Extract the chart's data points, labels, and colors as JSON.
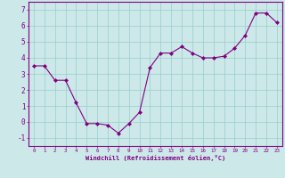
{
  "x": [
    0,
    1,
    2,
    3,
    4,
    5,
    6,
    7,
    8,
    9,
    10,
    11,
    12,
    13,
    14,
    15,
    16,
    17,
    18,
    19,
    20,
    21,
    22,
    23
  ],
  "y": [
    3.5,
    3.5,
    2.6,
    2.6,
    1.2,
    -0.1,
    -0.1,
    -0.2,
    -0.7,
    -0.1,
    0.6,
    3.4,
    4.3,
    4.3,
    4.7,
    4.3,
    4.0,
    4.0,
    4.1,
    4.6,
    5.4,
    6.8,
    6.8,
    6.2
  ],
  "xlim": [
    -0.5,
    23.5
  ],
  "ylim": [
    -1.5,
    7.5
  ],
  "yticks": [
    -1,
    0,
    1,
    2,
    3,
    4,
    5,
    6,
    7
  ],
  "xticks": [
    0,
    1,
    2,
    3,
    4,
    5,
    6,
    7,
    8,
    9,
    10,
    11,
    12,
    13,
    14,
    15,
    16,
    17,
    18,
    19,
    20,
    21,
    22,
    23
  ],
  "xlabel": "Windchill (Refroidissement éolien,°C)",
  "line_color": "#800080",
  "marker_color": "#800080",
  "bg_color": "#cce8e8",
  "grid_color": "#99cccc",
  "axis_color": "#800080",
  "tick_color": "#800080",
  "font_family": "monospace",
  "xlabel_fontsize": 5.0,
  "tick_fontsize_x": 4.2,
  "tick_fontsize_y": 5.5
}
